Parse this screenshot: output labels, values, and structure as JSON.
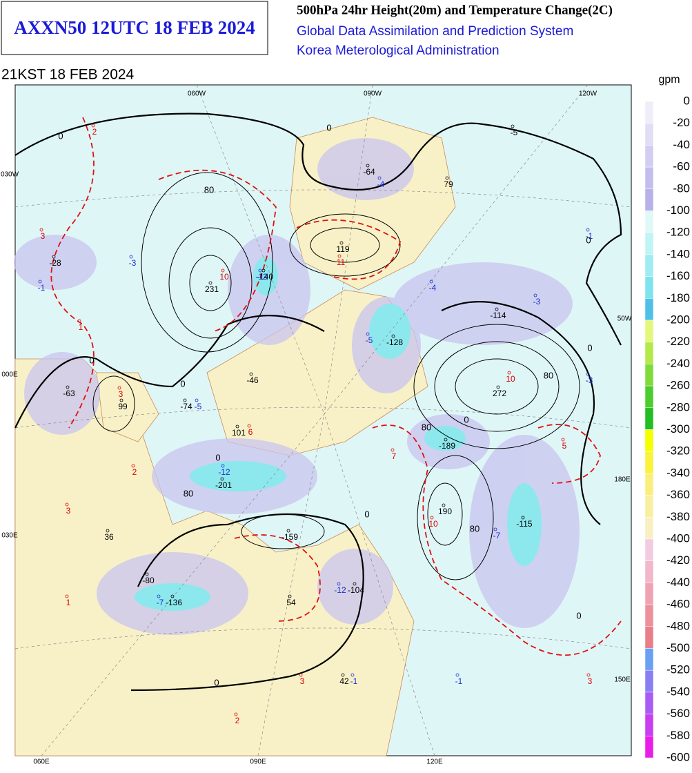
{
  "header": {
    "title": "AXXN50 12UTC 18 FEB 2024",
    "product": "500hPa 24hr Height(20m) and Temperature Change(2C)",
    "system": "Global Data Assimilation and Prediction System",
    "agency": "Korea Meterological Administration"
  },
  "valid_time": "21KST 18 FEB 2024",
  "colorbar": {
    "unit": "gpm",
    "levels": [
      0,
      -20,
      -40,
      -60,
      -80,
      -100,
      -120,
      -140,
      -160,
      -180,
      -200,
      -220,
      -240,
      -260,
      -280,
      -300,
      -320,
      -340,
      -360,
      -380,
      -400,
      -420,
      -440,
      -460,
      -480,
      -500,
      -520,
      -540,
      -560,
      -580,
      -600
    ],
    "colors": [
      "#efedf9",
      "#e1ddf5",
      "#d2cdf1",
      "#c4beed",
      "#b7b0e9",
      "#dff8f8",
      "#c0f4f5",
      "#9fedf2",
      "#7fe3ee",
      "#4fc0e8",
      "#e4f77a",
      "#b3ea4a",
      "#7fdb3a",
      "#4ccd2d",
      "#22be22",
      "#f4ff00",
      "#faf23b",
      "#faef7a",
      "#f9efa0",
      "#f8f0c0",
      "#f3cbe0",
      "#f3b6cb",
      "#f0a2b3",
      "#ec909c",
      "#e87f88",
      "#6aa0f4",
      "#8a7ef4",
      "#a85cf4",
      "#c83ef0",
      "#e81ee8"
    ]
  },
  "map": {
    "grid_labels": [
      "060W",
      "090W",
      "120W",
      "030W",
      "50W",
      "000E",
      "180E",
      "030E",
      "150E",
      "060E",
      "090E",
      "120E"
    ],
    "height_color": "#000000",
    "temperature_color": "#dd0000",
    "cold_color": "#1a2fd0",
    "height_labels": [
      "-64",
      "79",
      "119",
      "-28",
      "231",
      "-140",
      "-128",
      "-114",
      "-46",
      "272",
      "99",
      "-63",
      "-74",
      "101",
      "-189",
      "-201",
      "190",
      "-115",
      "36",
      "-159",
      "-80",
      "-136",
      "-104",
      "54",
      "42",
      "-5"
    ],
    "temperature_labels": [
      "2",
      "3",
      "1",
      "3",
      "2",
      "3",
      "1",
      "6",
      "7",
      "10",
      "5",
      "3",
      "2",
      "3",
      "10",
      "11",
      "10"
    ],
    "cold_labels": [
      "-1",
      "-3",
      "-4",
      "-1",
      "-4",
      "-3",
      "-5",
      "-3",
      "-5",
      "-12",
      "-7",
      "-7",
      "-12",
      "-1",
      "-1",
      "-13"
    ],
    "contour_labels": [
      "0",
      "0",
      "80",
      "0",
      "0",
      "80",
      "0",
      "0",
      "0",
      "80",
      "0",
      "80",
      "0",
      "80",
      "0",
      "0"
    ]
  }
}
